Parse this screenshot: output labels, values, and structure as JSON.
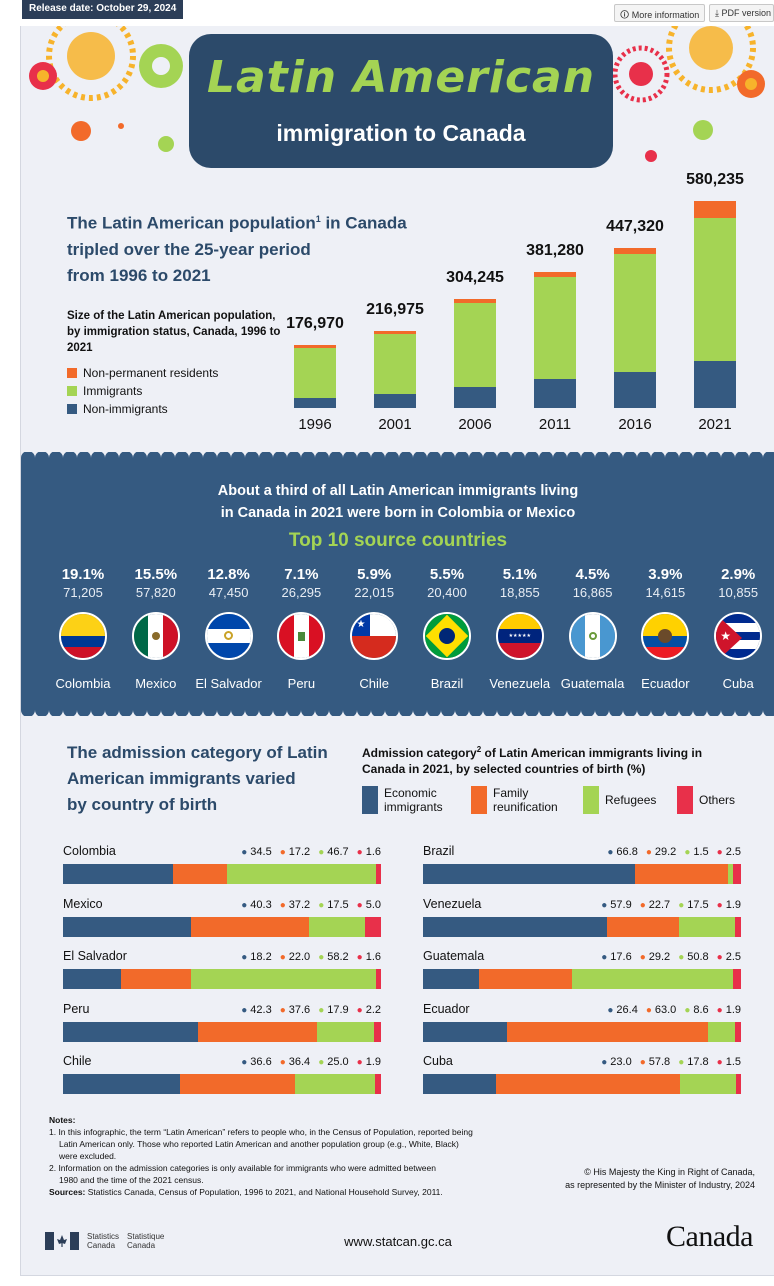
{
  "topbar": {
    "release": "Release date: October 29, 2024",
    "more_info": "More information",
    "pdf": "PDF version"
  },
  "hero": {
    "title": "Latin American",
    "subtitle": "immigration to Canada"
  },
  "colors": {
    "navy": "#2c4a6a",
    "band": "#355a81",
    "green": "#a4d454",
    "orange": "#f26a2a",
    "red": "#e8304a",
    "economic": "#355a81",
    "family": "#f26a2a",
    "refugees": "#a4d454",
    "others": "#e8304a"
  },
  "section1": {
    "title_line1": "The Latin American population",
    "title_sup": "1",
    "title_line1b": " in Canada",
    "title_line2": "tripled over the 25-year period",
    "title_line3": "from 1996 to 2021",
    "desc": "Size of the Latin American population, by immigration status, Canada, 1996 to 2021",
    "legend": [
      "Non-permanent residents",
      "Immigrants",
      "Non-immigrants"
    ]
  },
  "chart_data": {
    "type": "bar",
    "title": "Size of the Latin American population, by immigration status, Canada, 1996 to 2021",
    "categories": [
      "1996",
      "2001",
      "2006",
      "2011",
      "2016",
      "2021"
    ],
    "totals": [
      "176,970",
      "216,975",
      "304,245",
      "381,280",
      "447,320",
      "580,235"
    ],
    "total_values": [
      176970,
      216975,
      304245,
      381280,
      447320,
      580235
    ],
    "series": [
      {
        "name": "Non-immigrants",
        "values": [
          29000,
          38000,
          60000,
          82000,
          100000,
          133000
        ]
      },
      {
        "name": "Immigrants",
        "values": [
          139000,
          169000,
          234000,
          285000,
          330000,
          400000
        ]
      },
      {
        "name": "Non-permanent residents",
        "values": [
          8970,
          9975,
          10245,
          14280,
          17320,
          47235
        ]
      }
    ],
    "ylim": [
      0,
      600000
    ]
  },
  "section2": {
    "title_line1": "About a third of all Latin American immigrants living",
    "title_line2": "in Canada in 2021 were born in Colombia or Mexico",
    "top10": "Top 10 source countries",
    "countries": [
      {
        "name": "Colombia",
        "pct": "19.1%",
        "count": "71,205",
        "flag": "colombia-flag-icon"
      },
      {
        "name": "Mexico",
        "pct": "15.5%",
        "count": "57,820",
        "flag": "mexico-flag-icon"
      },
      {
        "name": "El Salvador",
        "pct": "12.8%",
        "count": "47,450",
        "flag": "el-salvador-flag-icon"
      },
      {
        "name": "Peru",
        "pct": "7.1%",
        "count": "26,295",
        "flag": "peru-flag-icon"
      },
      {
        "name": "Chile",
        "pct": "5.9%",
        "count": "22,015",
        "flag": "chile-flag-icon"
      },
      {
        "name": "Brazil",
        "pct": "5.5%",
        "count": "20,400",
        "flag": "brazil-flag-icon"
      },
      {
        "name": "Venezuela",
        "pct": "5.1%",
        "count": "18,855",
        "flag": "venezuela-flag-icon"
      },
      {
        "name": "Guatemala",
        "pct": "4.5%",
        "count": "16,865",
        "flag": "guatemala-flag-icon"
      },
      {
        "name": "Ecuador",
        "pct": "3.9%",
        "count": "14,615",
        "flag": "ecuador-flag-icon"
      },
      {
        "name": "Cuba",
        "pct": "2.9%",
        "count": "10,855",
        "flag": "cuba-flag-icon"
      }
    ]
  },
  "section3": {
    "title_line1": "The admission category of Latin",
    "title_line2": "American immigrants varied",
    "title_line3": "by country of birth",
    "sub_line1": "Admission category",
    "sub_sup": "2",
    "sub_line1b": " of Latin American immigrants living in",
    "sub_line2": "Canada in 2021, by selected countries of birth (%)",
    "legend": [
      "Economic immigrants",
      "Family reunification",
      "Refugees",
      "Others"
    ],
    "rows": [
      {
        "country": "Colombia",
        "e": 34.5,
        "f": 17.2,
        "r": 46.7,
        "o": 1.6
      },
      {
        "country": "Mexico",
        "e": 40.3,
        "f": 37.2,
        "r": 17.5,
        "o": 5.0
      },
      {
        "country": "El Salvador",
        "e": 18.2,
        "f": 22.0,
        "r": 58.2,
        "o": 1.6
      },
      {
        "country": "Peru",
        "e": 42.3,
        "f": 37.6,
        "r": 17.9,
        "o": 2.2
      },
      {
        "country": "Chile",
        "e": 36.6,
        "f": 36.4,
        "r": 25.0,
        "o": 1.9
      },
      {
        "country": "Brazil",
        "e": 66.8,
        "f": 29.2,
        "r": 1.5,
        "o": 2.5
      },
      {
        "country": "Venezuela",
        "e": 57.9,
        "f": 22.7,
        "r": 17.5,
        "o": 1.9
      },
      {
        "country": "Guatemala",
        "e": 17.6,
        "f": 29.2,
        "r": 50.8,
        "o": 2.5
      },
      {
        "country": "Ecuador",
        "e": 26.4,
        "f": 63.0,
        "r": 8.6,
        "o": 1.9
      },
      {
        "country": "Cuba",
        "e": 23.0,
        "f": 57.8,
        "r": 17.8,
        "o": 1.5
      }
    ]
  },
  "notes": {
    "heading": "Notes:",
    "n1a": "1. In this infographic, the term “Latin American” refers to people who, in the Census of Population, reported being",
    "n1b": "Latin American only. Those who reported Latin American and another population group (e.g., White, Black)",
    "n1c": "were excluded.",
    "n2a": "2. Information on the admission categories is only available for immigrants who were admitted between",
    "n2b": "1980 and the time of the 2021 census.",
    "sources_label": "Sources:",
    "sources": " Statistics Canada, Census of Population, 1996 to 2021, and National Household Survey, 2011.",
    "crown1": "© His Majesty the King in Right of Canada,",
    "crown2": "as represented by the Minister of Industry, 2024"
  },
  "footer": {
    "sc_en1": "Statistics",
    "sc_en2": "Canada",
    "sc_fr1": "Statistique",
    "sc_fr2": "Canada",
    "site": "www.statcan.gc.ca",
    "wordmark": "Canada"
  }
}
